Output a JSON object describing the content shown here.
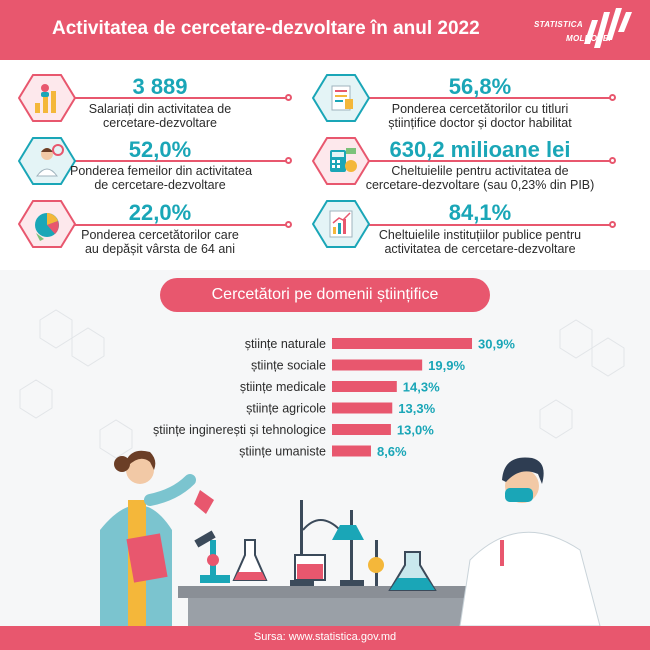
{
  "header": {
    "title": "Activitatea de cercetare-dezvoltare în anul 2022",
    "logo_line1": "STATISTICA",
    "logo_line2": "MOLDOVEI"
  },
  "stats": [
    {
      "value": "3 889",
      "label_line1": "Salariați din activitatea de",
      "label_line2": "cercetare-dezvoltare",
      "icon": "people-chart-icon"
    },
    {
      "value": "56,8%",
      "label_line1": "Ponderea cercetătorilor cu titluri",
      "label_line2": "științifice doctor și doctor habilitat",
      "icon": "diploma-icon"
    },
    {
      "value": "52,0%",
      "label_line1": "Ponderea femeilor din activitatea",
      "label_line2": "de cercetare-dezvoltare",
      "icon": "woman-researcher-icon"
    },
    {
      "value": "630,2 milioane lei",
      "label_line1": "Cheltuielile pentru activitatea de",
      "label_line2": "cercetare-dezvoltare (sau 0,23% din PIB)",
      "icon": "calculator-money-icon"
    },
    {
      "value": "22,0%",
      "label_line1": "Ponderea cercetătorilor care",
      "label_line2": "au depășit vârsta de 64 ani",
      "icon": "pie-chart-icon"
    },
    {
      "value": "84,1%",
      "label_line1": "Cheltuielile instituțiilor publice pentru",
      "label_line2": "activitatea de cercetare-dezvoltare",
      "icon": "growth-chart-icon"
    }
  ],
  "section": {
    "title": "Cercetători pe domenii științifice"
  },
  "chart_data": {
    "type": "bar",
    "orientation": "horizontal",
    "title": "Cercetători pe domenii științifice",
    "categories": [
      "științe naturale",
      "științe sociale",
      "științe medicale",
      "științe agricole",
      "științe inginerești și tehnologice",
      "științe umaniste"
    ],
    "values": [
      30.9,
      19.9,
      14.3,
      13.3,
      13.0,
      8.6
    ],
    "value_labels": [
      "30,9%",
      "19,9%",
      "14,3%",
      "13,3%",
      "13,0%",
      "8,6%"
    ],
    "unit": "%",
    "xlim": [
      0,
      32
    ],
    "bar_color": "#e8576e",
    "label_color": "#1aa6b7",
    "grid": false,
    "legend": "none"
  },
  "footer": {
    "source": "Sursa: www.statistica.gov.md"
  },
  "colors": {
    "accent": "#e8576e",
    "teal": "#1aa6b7"
  }
}
